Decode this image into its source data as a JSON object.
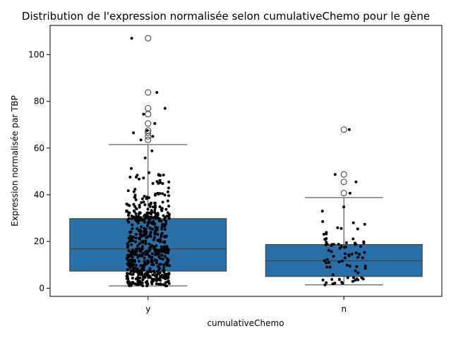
{
  "chart_data": {
    "type": "box",
    "title": "Distribution de l'expression normalisée selon cumulativeChemo pour le gène",
    "xlabel": "cumulativeChemo",
    "ylabel": "Expression normalisée par TBP",
    "categories": [
      "y",
      "n"
    ],
    "ylim": [
      -3.5,
      112.5
    ],
    "yticks": [
      0,
      20,
      40,
      60,
      80,
      100
    ],
    "grid": false,
    "legend": "none",
    "box_color": "#2a6fa8",
    "boxes": [
      {
        "category": "y",
        "whisker_low": 1.0,
        "q1": 7.3,
        "median": 16.8,
        "q3": 29.8,
        "whisker_high": 61.5,
        "outliers": [
          63.5,
          65.0,
          66.5,
          67.5,
          70.5,
          74.5,
          77.0,
          83.8,
          107.0
        ],
        "points_drawn": 600
      },
      {
        "category": "n",
        "whisker_low": 1.4,
        "q1": 5.0,
        "median": 11.7,
        "q3": 18.7,
        "whisker_high": 38.8,
        "outliers": [
          40.7,
          45.5,
          48.7,
          67.9
        ],
        "points_drawn": 80
      }
    ]
  }
}
